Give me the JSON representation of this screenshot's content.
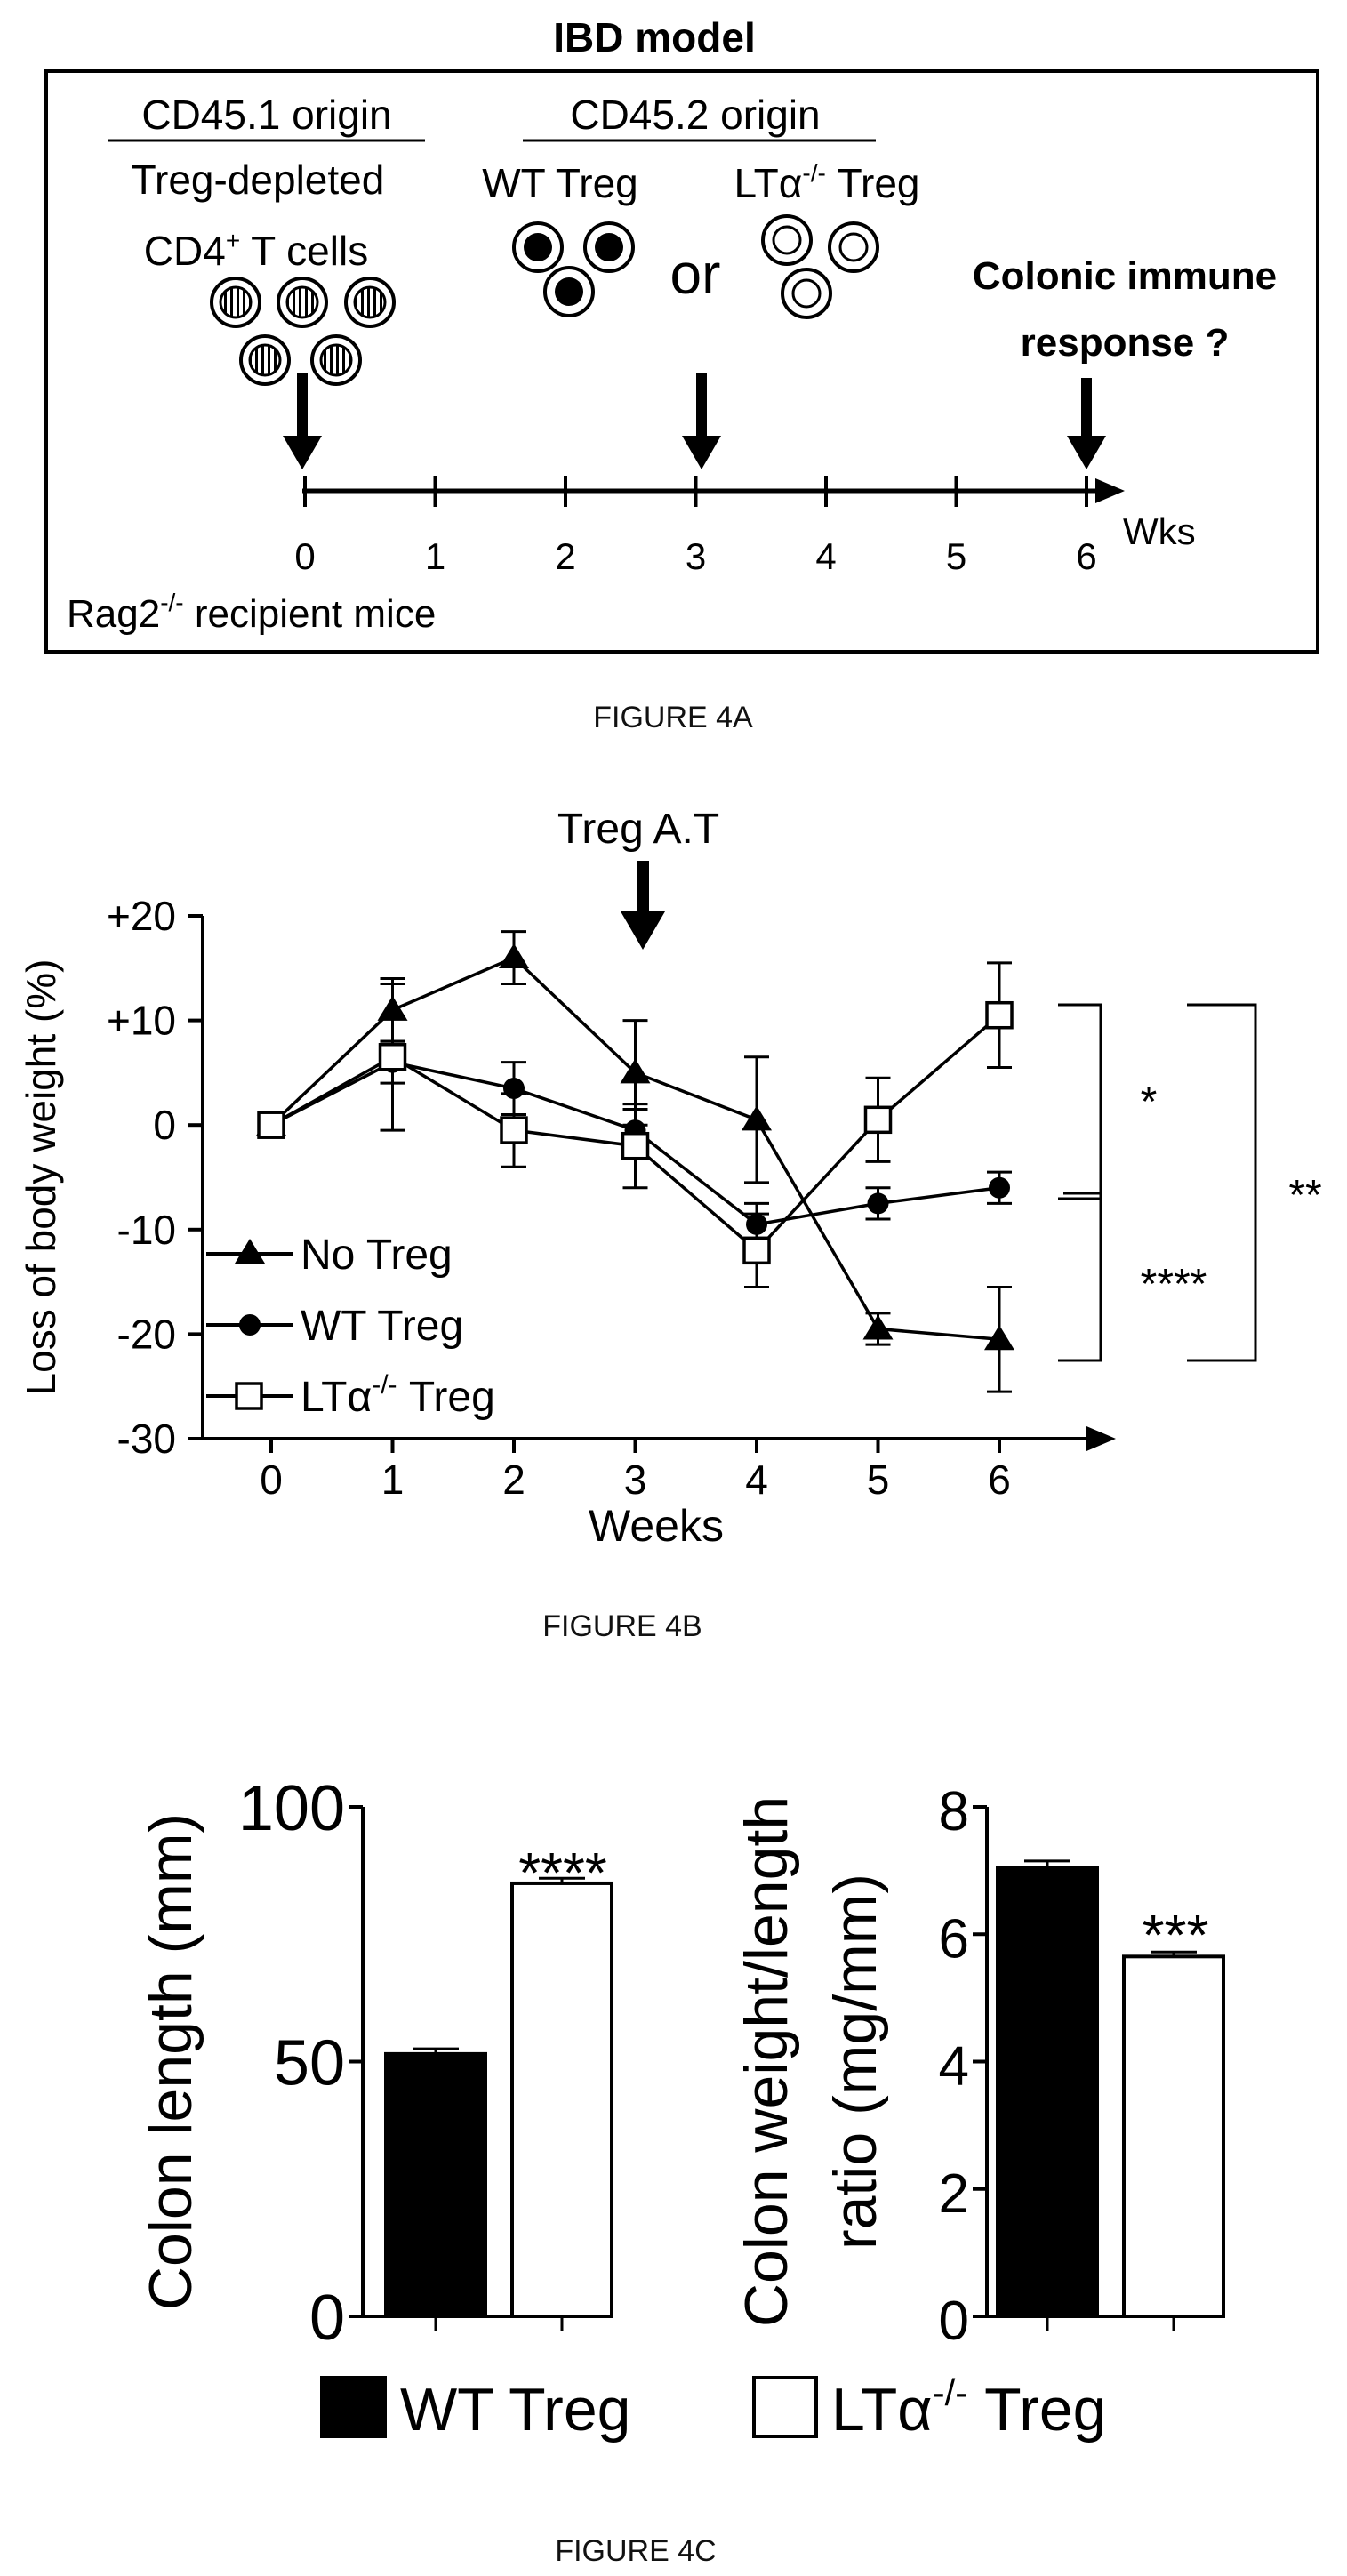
{
  "figure_4a": {
    "title": "IBD model",
    "cd451_header": "CD45.1 origin",
    "cd451_line1": "Treg-depleted",
    "cd451_line2_main": "CD4",
    "cd451_line2_sup": "+",
    "cd451_line2_rest": " T cells",
    "cd452_header": "CD45.2 origin",
    "wt_label": "WT Treg",
    "lta_main": "LTα",
    "lta_sup": "-/-",
    "lta_rest": " Treg",
    "or_text": "or",
    "colonic_line1": "Colonic immune",
    "colonic_line2": "response ?",
    "axis_ticks": [
      "0",
      "1",
      "2",
      "3",
      "4",
      "5",
      "6"
    ],
    "axis_unit": "Wks",
    "recipient_main": "Rag2",
    "recipient_sup": "-/-",
    "recipient_rest": " recipient mice",
    "caption": "FIGURE 4A"
  },
  "figure_4b": {
    "annotation": "Treg A.T",
    "caption": "FIGURE 4B",
    "sig_top": "*",
    "sig_bottom": "****",
    "sig_outer": "**",
    "legend": {
      "no_treg": "No Treg",
      "wt_treg": "WT Treg",
      "lta_main": "LTα",
      "lta_sup": "-/-",
      "lta_rest": " Treg"
    }
  },
  "figure_4c": {
    "caption": "FIGURE 4C",
    "sig_left": "****",
    "sig_right": "***",
    "legend_wt": "WT Treg",
    "legend_lta_main": "LTα",
    "legend_lta_sup": "-/-",
    "legend_lta_rest": " Treg"
  },
  "chart_data": [
    {
      "type": "line",
      "xlabel": "Weeks",
      "ylabel": "Loss of body weight (%)",
      "x": [
        0,
        1,
        2,
        3,
        4,
        5,
        6
      ],
      "x_ticks": [
        "0",
        "1",
        "2",
        "3",
        "4",
        "5",
        "6"
      ],
      "ylim": [
        -30,
        20
      ],
      "y_ticks": [
        "+20",
        "+10",
        "0",
        "-10",
        "-20",
        "-30"
      ],
      "y_tick_values": [
        20,
        10,
        0,
        -10,
        -20,
        -30
      ],
      "series": [
        {
          "name": "No Treg",
          "marker": "triangle",
          "values": [
            0,
            11,
            16,
            5,
            0.5,
            -19.5,
            -20.5
          ],
          "error": [
            0,
            3,
            2.5,
            5,
            6,
            1.5,
            5
          ]
        },
        {
          "name": "WT Treg",
          "marker": "circle",
          "values": [
            0,
            6,
            3.5,
            -0.5,
            -9.5,
            -7.5,
            -6
          ],
          "error": [
            0,
            2,
            2.5,
            2,
            2,
            1.5,
            1.5
          ]
        },
        {
          "name": "LTα-/- Treg",
          "marker": "open-square",
          "values": [
            0,
            6.5,
            -0.5,
            -2,
            -12,
            0.5,
            10.5
          ],
          "error": [
            0,
            7,
            3.5,
            4,
            3.5,
            4,
            5
          ]
        }
      ]
    },
    {
      "type": "bar",
      "ylabel": "Colon length (mm)",
      "categories": [
        "WT Treg",
        "LTα-/- Treg"
      ],
      "values": [
        51.5,
        85
      ],
      "error": [
        1,
        1
      ],
      "ylim": [
        0,
        100
      ],
      "y_ticks": [
        "0",
        "50",
        "100"
      ],
      "y_tick_values": [
        0,
        50,
        100
      ]
    },
    {
      "type": "bar",
      "ylabel": "Colon weight/length ratio (mg/mm)",
      "categories": [
        "WT Treg",
        "LTα-/- Treg"
      ],
      "values": [
        7.05,
        5.65
      ],
      "error": [
        0.1,
        0.07
      ],
      "ylim": [
        0,
        8
      ],
      "y_ticks": [
        "0",
        "2",
        "4",
        "6",
        "8"
      ],
      "y_tick_values": [
        0,
        2,
        4,
        6,
        8
      ]
    }
  ]
}
